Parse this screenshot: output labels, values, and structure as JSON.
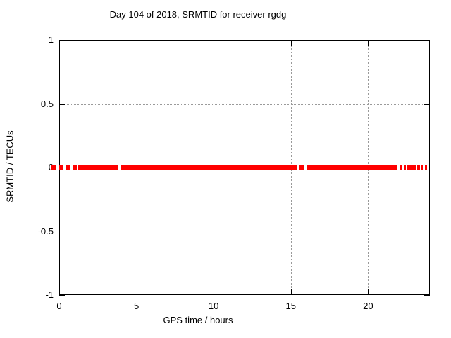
{
  "figure": {
    "background": "#ffffff",
    "frame_color": "#000000",
    "grid_color": "#9a9a9a",
    "accent_color": "#ff0000"
  },
  "chart_data": {
    "type": "scatter",
    "title": "Day 104 of 2018, SRMTID for receiver rgdg",
    "xlabel": "GPS time / hours",
    "ylabel": "SRMTID / TECUs",
    "xlim": [
      0,
      24
    ],
    "ylim": [
      -1,
      1
    ],
    "xticks": {
      "values": [
        0,
        5,
        10,
        15,
        20
      ],
      "labels": [
        "0",
        "5",
        "10",
        "15",
        "20"
      ]
    },
    "yticks": {
      "values": [
        1,
        0.5,
        0,
        -0.5,
        -1
      ],
      "labels": [
        "1",
        "0.5",
        "0",
        "-0.5",
        "-1"
      ]
    },
    "grid": {
      "x_at": [
        5,
        10,
        15,
        20
      ],
      "y_at": [
        0.5,
        -0.5
      ]
    },
    "legend": "none",
    "series": [
      {
        "name": "SRMTID",
        "marker": "square-point",
        "color": "#ff0000",
        "y_value": 0,
        "x_segments_hours": [
          [
            -0.5,
            -0.18
          ],
          [
            0.0,
            0.27
          ],
          [
            0.47,
            0.75
          ],
          [
            0.85,
            1.13
          ],
          [
            1.23,
            3.85
          ],
          [
            4.0,
            15.42
          ],
          [
            15.54,
            15.84
          ],
          [
            16.0,
            21.92
          ],
          [
            22.04,
            22.22
          ],
          [
            22.32,
            22.47
          ],
          [
            22.53,
            23.07
          ],
          [
            23.2,
            23.35
          ],
          [
            23.44,
            23.56
          ],
          [
            23.68,
            23.84
          ]
        ]
      }
    ]
  }
}
